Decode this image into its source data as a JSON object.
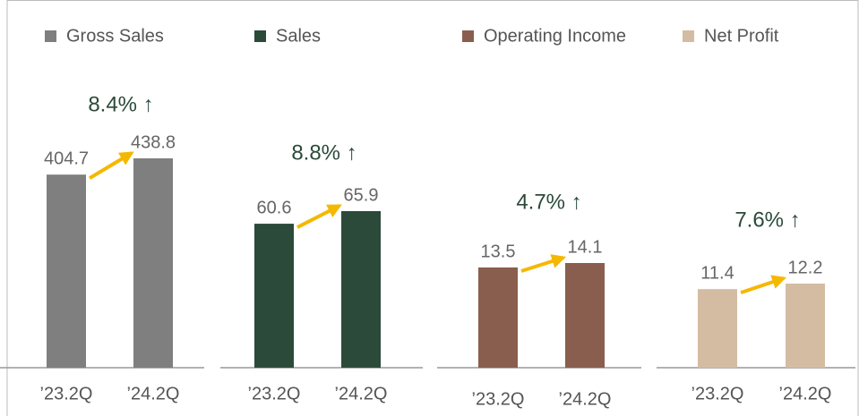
{
  "chart_data": [
    {
      "type": "bar",
      "series": [
        {
          "name": "Gross Sales",
          "color": "#7f7f7f",
          "values": [
            404.7,
            438.8
          ]
        }
      ],
      "categories": [
        "’23.2Q",
        "’24.2Q"
      ],
      "annotation": "8.4% ↑"
    },
    {
      "type": "bar",
      "series": [
        {
          "name": "Sales",
          "color": "#2b4a3a",
          "values": [
            60.6,
            65.9
          ]
        }
      ],
      "categories": [
        "’23.2Q",
        "’24.2Q"
      ],
      "annotation": "8.8% ↑"
    },
    {
      "type": "bar",
      "series": [
        {
          "name": "Operating Income",
          "color": "#8a5e4e",
          "values": [
            13.5,
            14.1
          ]
        }
      ],
      "categories": [
        "’23.2Q",
        "’24.2Q"
      ],
      "annotation": "4.7% ↑"
    },
    {
      "type": "bar",
      "series": [
        {
          "name": "Net Profit",
          "color": "#d4bca3",
          "values": [
            11.4,
            12.2
          ]
        }
      ],
      "categories": [
        "’23.2Q",
        "’24.2Q"
      ],
      "annotation": "7.6% ↑"
    }
  ]
}
